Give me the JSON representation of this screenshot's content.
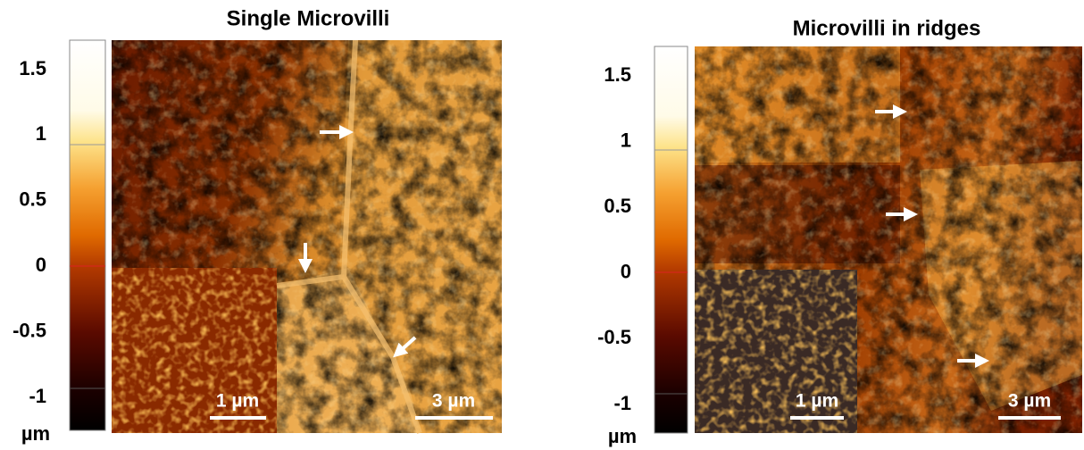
{
  "panels": [
    {
      "title": "Single Microvilli",
      "colorbar": {
        "ticks": [
          "1.5",
          "1",
          "0.5",
          "0",
          "-0.5",
          "-1"
        ],
        "unit": "µm"
      },
      "inset_scale_bar": "1 µm",
      "scale_bar": "3 µm"
    },
    {
      "title": "Microvilli in ridges",
      "colorbar": {
        "ticks": [
          "1.5",
          "1",
          "0.5",
          "0",
          "-0.5",
          "-1"
        ],
        "unit": "µm"
      },
      "inset_scale_bar": "1 µm",
      "scale_bar": "3 µm"
    }
  ]
}
